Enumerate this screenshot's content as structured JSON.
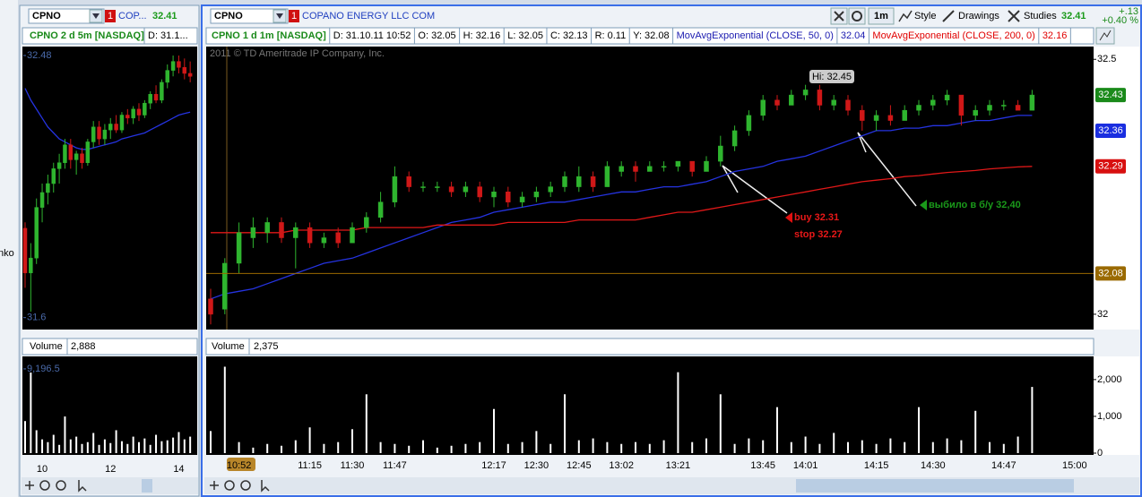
{
  "left_edge_text": "nko",
  "left_panel": {
    "symbol": "CPNO",
    "link": "1",
    "description": "COP...",
    "last": "32.41",
    "chart_title": "CPNO 2 d 5m [NASDAQ]",
    "chart_info": "D: 31.1...",
    "price_chart": {
      "type": "candlestick",
      "categories": [
        null,
        null,
        null,
        "10",
        null,
        null,
        null,
        null,
        null,
        null,
        null,
        null,
        null,
        null,
        null,
        "12",
        null,
        null,
        null,
        null,
        null,
        null,
        null,
        null,
        null,
        null,
        null,
        "14",
        null,
        null
      ],
      "candles": [
        [
          31.9,
          31.92,
          31.7,
          31.75
        ],
        [
          31.75,
          31.85,
          31.62,
          31.8
        ],
        [
          31.8,
          32.0,
          31.78,
          31.97
        ],
        [
          31.97,
          32.05,
          31.92,
          32.02
        ],
        [
          32.02,
          32.08,
          31.98,
          32.05
        ],
        [
          32.05,
          32.12,
          32.02,
          32.1
        ],
        [
          32.1,
          32.15,
          32.05,
          32.12
        ],
        [
          32.12,
          32.2,
          32.1,
          32.18
        ],
        [
          32.18,
          32.2,
          32.1,
          32.13
        ],
        [
          32.13,
          32.16,
          32.08,
          32.15
        ],
        [
          32.15,
          32.17,
          32.1,
          32.12
        ],
        [
          32.12,
          32.2,
          32.11,
          32.19
        ],
        [
          32.19,
          32.26,
          32.17,
          32.24
        ],
        [
          32.24,
          32.26,
          32.18,
          32.2
        ],
        [
          32.2,
          32.25,
          32.18,
          32.23
        ],
        [
          32.23,
          32.27,
          32.2,
          32.25
        ],
        [
          32.25,
          32.28,
          32.22,
          32.23
        ],
        [
          32.23,
          32.29,
          32.22,
          32.28
        ],
        [
          32.28,
          32.3,
          32.25,
          32.27
        ],
        [
          32.27,
          32.31,
          32.25,
          32.3
        ],
        [
          32.3,
          32.32,
          32.26,
          32.28
        ],
        [
          32.28,
          32.33,
          32.27,
          32.32
        ],
        [
          32.32,
          32.36,
          32.3,
          32.35
        ],
        [
          32.35,
          32.38,
          32.32,
          32.33
        ],
        [
          32.33,
          32.4,
          32.32,
          32.39
        ],
        [
          32.39,
          32.45,
          32.37,
          32.43
        ],
        [
          32.43,
          32.48,
          32.41,
          32.46
        ],
        [
          32.46,
          32.48,
          32.42,
          32.44
        ],
        [
          32.44,
          32.47,
          32.4,
          32.42
        ],
        [
          32.42,
          32.46,
          32.39,
          32.41
        ]
      ],
      "up_color": "#2fb52f",
      "down_color": "#d01818",
      "series": [
        {
          "color": "#2533e0",
          "values": [
            32.37,
            32.33,
            32.3,
            32.27,
            32.24,
            32.22,
            32.2,
            32.19,
            32.18,
            32.17,
            32.165,
            32.165,
            32.17,
            32.175,
            32.18,
            32.185,
            32.19,
            32.2,
            32.205,
            32.21,
            32.215,
            32.22,
            32.23,
            32.24,
            32.25,
            32.26,
            32.27,
            32.28,
            32.285,
            32.29
          ]
        }
      ],
      "ylim": [
        31.56,
        32.51
      ],
      "yticks": [
        31.6,
        32.48
      ]
    },
    "volume_title": "Volume",
    "volume_value": "2,888",
    "volume_chart": {
      "type": "bar",
      "color": "#ffffff",
      "values": [
        3500,
        8800,
        2500,
        1500,
        1200,
        2000,
        900,
        4000,
        1500,
        1800,
        1000,
        1200,
        2200,
        900,
        1500,
        1100,
        2500,
        1300,
        1000,
        1800,
        1200,
        1600,
        900,
        2000,
        1300,
        1400,
        1700,
        2300,
        1500,
        1800
      ],
      "ylim": [
        0,
        10560
      ],
      "yticks": [
        {
          "value": 9196.5,
          "label": "9,196.5"
        }
      ]
    }
  },
  "main_panel": {
    "symbol": "CPNO",
    "link": "1",
    "description": "COPANO ENERGY LLC COM",
    "toolbar": [
      "1m",
      "Style",
      "Drawings",
      "Studies"
    ],
    "last": "32.41",
    "change": "+.13",
    "change_pct": "+0.40 %",
    "chart_title": "CPNO 1 d 1m [NASDAQ]",
    "info": [
      "D: 31.10.11 10:52",
      "O: 32.05",
      "H: 32.16",
      "L: 32.05",
      "C: 32.13",
      "R: 0.11",
      "Y: 32.08"
    ],
    "studies": [
      {
        "name": "MovAvgExponential (CLOSE, 50, 0)",
        "value": "32.04",
        "color": "#1a1ab0"
      },
      {
        "name": "MovAvgExponential (CLOSE, 200, 0)",
        "value": "32.16",
        "color": "#e00000"
      }
    ],
    "watermark": "2011 © TD Ameritrade IP Company, Inc.",
    "annotations": {
      "high": "Hi: 32.45",
      "buy": "buy 32.31",
      "stop": "stop 32.27",
      "exit": "выбило в б/у 32,40"
    },
    "price_chart": {
      "type": "candlestick",
      "categories": [
        null,
        null,
        "10:52",
        null,
        null,
        null,
        null,
        "11:15",
        null,
        null,
        "11:30",
        null,
        null,
        "11:47",
        null,
        null,
        null,
        null,
        null,
        null,
        "12:17",
        null,
        null,
        "12:30",
        null,
        null,
        "12:45",
        null,
        null,
        "13:02",
        null,
        null,
        null,
        "13:21",
        null,
        null,
        null,
        null,
        null,
        "13:45",
        null,
        null,
        "14:01",
        null,
        null,
        null,
        null,
        "14:15",
        null,
        null,
        null,
        "14:30",
        null,
        null,
        null,
        null,
        "14:47",
        null,
        null,
        null,
        null,
        "15:00"
      ],
      "candles": [
        [
          32.03,
          32.05,
          31.98,
          32.0
        ],
        [
          32.01,
          32.11,
          32.0,
          32.1
        ],
        [
          32.1,
          32.18,
          32.08,
          32.16
        ],
        [
          32.15,
          32.19,
          32.13,
          32.17
        ],
        [
          32.16,
          32.19,
          32.14,
          32.18
        ],
        [
          32.18,
          32.19,
          32.14,
          32.15
        ],
        [
          32.15,
          32.18,
          32.09,
          32.17
        ],
        [
          32.17,
          32.18,
          32.13,
          32.14
        ],
        [
          32.14,
          32.16,
          32.13,
          32.15
        ],
        [
          32.16,
          32.17,
          32.13,
          32.14
        ],
        [
          32.14,
          32.18,
          32.14,
          32.17
        ],
        [
          32.17,
          32.2,
          32.16,
          32.19
        ],
        [
          32.19,
          32.24,
          32.18,
          32.22
        ],
        [
          32.22,
          32.29,
          32.21,
          32.27
        ],
        [
          32.27,
          32.28,
          32.24,
          32.25
        ],
        [
          32.25,
          32.26,
          32.24,
          32.25
        ],
        [
          32.25,
          32.26,
          32.24,
          32.25
        ],
        [
          32.25,
          32.26,
          32.23,
          32.24
        ],
        [
          32.24,
          32.26,
          32.23,
          32.25
        ],
        [
          32.25,
          32.26,
          32.22,
          32.23
        ],
        [
          32.23,
          32.25,
          32.21,
          32.24
        ],
        [
          32.24,
          32.25,
          32.21,
          32.22
        ],
        [
          32.22,
          32.24,
          32.21,
          32.23
        ],
        [
          32.23,
          32.25,
          32.22,
          32.24
        ],
        [
          32.24,
          32.26,
          32.23,
          32.25
        ],
        [
          32.25,
          32.28,
          32.24,
          32.27
        ],
        [
          32.25,
          32.29,
          32.24,
          32.27
        ],
        [
          32.27,
          32.28,
          32.24,
          32.25
        ],
        [
          32.25,
          32.3,
          32.25,
          32.29
        ],
        [
          32.28,
          32.3,
          32.27,
          32.29
        ],
        [
          32.29,
          32.3,
          32.26,
          32.28
        ],
        [
          32.28,
          32.3,
          32.28,
          32.29
        ],
        [
          32.29,
          32.3,
          32.28,
          32.29
        ],
        [
          32.29,
          32.3,
          32.28,
          32.3
        ],
        [
          32.3,
          32.3,
          32.27,
          32.28
        ],
        [
          32.28,
          32.31,
          32.28,
          32.3
        ],
        [
          32.3,
          32.35,
          32.29,
          32.33
        ],
        [
          32.33,
          32.37,
          32.32,
          32.36
        ],
        [
          32.36,
          32.4,
          32.35,
          32.39
        ],
        [
          32.39,
          32.43,
          32.38,
          32.42
        ],
        [
          32.42,
          32.43,
          32.4,
          32.41
        ],
        [
          32.41,
          32.44,
          32.41,
          32.43
        ],
        [
          32.43,
          32.45,
          32.42,
          32.44
        ],
        [
          32.44,
          32.45,
          32.4,
          32.41
        ],
        [
          32.41,
          32.43,
          32.4,
          32.42
        ],
        [
          32.42,
          32.43,
          32.39,
          32.4
        ],
        [
          32.4,
          32.41,
          32.36,
          32.38
        ],
        [
          32.38,
          32.4,
          32.36,
          32.39
        ],
        [
          32.39,
          32.41,
          32.37,
          32.38
        ],
        [
          32.38,
          32.41,
          32.38,
          32.4
        ],
        [
          32.4,
          32.42,
          32.39,
          32.41
        ],
        [
          32.41,
          32.43,
          32.4,
          32.42
        ],
        [
          32.42,
          32.44,
          32.41,
          32.43
        ],
        [
          32.43,
          32.43,
          32.37,
          32.39
        ],
        [
          32.39,
          32.41,
          32.38,
          32.4
        ],
        [
          32.4,
          32.42,
          32.39,
          32.41
        ],
        [
          32.41,
          32.42,
          32.4,
          32.41
        ],
        [
          32.41,
          32.42,
          32.4,
          32.4
        ],
        [
          32.4,
          32.44,
          32.4,
          32.43
        ],
        null,
        null
      ],
      "up_color": "#2fb52f",
      "down_color": "#d01818",
      "series": [
        {
          "color": "#2533e0",
          "values": [
            32.03,
            32.04,
            32.045,
            32.05,
            32.06,
            32.07,
            32.08,
            32.09,
            32.1,
            32.105,
            32.11,
            32.12,
            32.13,
            32.14,
            32.15,
            32.16,
            32.17,
            32.18,
            32.185,
            32.19,
            32.2,
            32.205,
            32.21,
            32.215,
            32.22,
            32.22,
            32.225,
            32.23,
            32.235,
            32.24,
            32.24,
            32.245,
            32.25,
            32.25,
            32.255,
            32.26,
            32.27,
            32.28,
            32.285,
            32.29,
            32.3,
            32.305,
            32.31,
            32.32,
            32.33,
            32.34,
            32.35,
            32.36,
            32.36,
            32.365,
            32.365,
            32.37,
            32.37,
            32.375,
            32.38,
            32.38,
            32.385,
            32.39,
            32.39,
            null,
            null
          ]
        },
        {
          "color": "#e01818",
          "values": [
            32.16,
            32.16,
            32.16,
            32.16,
            32.16,
            32.16,
            32.165,
            32.165,
            32.165,
            32.165,
            32.165,
            32.17,
            32.17,
            32.17,
            32.17,
            32.17,
            32.175,
            32.175,
            32.175,
            32.175,
            32.175,
            32.18,
            32.18,
            32.18,
            32.18,
            32.18,
            32.185,
            32.185,
            32.185,
            32.185,
            32.185,
            32.19,
            32.195,
            32.2,
            32.2,
            32.205,
            32.21,
            32.215,
            32.22,
            32.225,
            32.23,
            32.235,
            32.24,
            32.245,
            32.25,
            32.255,
            32.26,
            32.263,
            32.266,
            32.27,
            32.272,
            32.275,
            32.278,
            32.28,
            32.282,
            32.285,
            32.287,
            32.289,
            32.29,
            null,
            null
          ]
        }
      ],
      "price_markers": [
        {
          "value": 32.43,
          "color": "#1a8a1a"
        },
        {
          "value": 32.36,
          "color": "#1a2ee0"
        },
        {
          "value": 32.29,
          "color": "#d81010"
        },
        {
          "value": 32.08,
          "color": "#9a6a00",
          "line": true
        }
      ],
      "ylim": [
        31.97,
        32.525
      ],
      "yticks": [
        32,
        32.5
      ]
    },
    "volume_title": "Volume",
    "volume_value": "2,375",
    "volume_chart": {
      "type": "bar",
      "color": "#ffffff",
      "values": [
        600,
        2350,
        300,
        150,
        250,
        200,
        350,
        700,
        250,
        300,
        650,
        1600,
        300,
        250,
        200,
        350,
        150,
        200,
        250,
        300,
        1200,
        250,
        300,
        600,
        250,
        1600,
        350,
        400,
        300,
        250,
        300,
        250,
        350,
        2200,
        300,
        400,
        1600,
        250,
        400,
        350,
        1250,
        300,
        450,
        250,
        550,
        300,
        350,
        250,
        400,
        300,
        1250,
        300,
        400,
        350,
        1150,
        300,
        250,
        450,
        1800,
        null,
        null
      ],
      "ylim": [
        0,
        2630
      ],
      "yticks": [
        0,
        {
          "value": 1000,
          "label": "1,000"
        },
        {
          "value": 2000,
          "label": "2,000"
        }
      ]
    }
  }
}
